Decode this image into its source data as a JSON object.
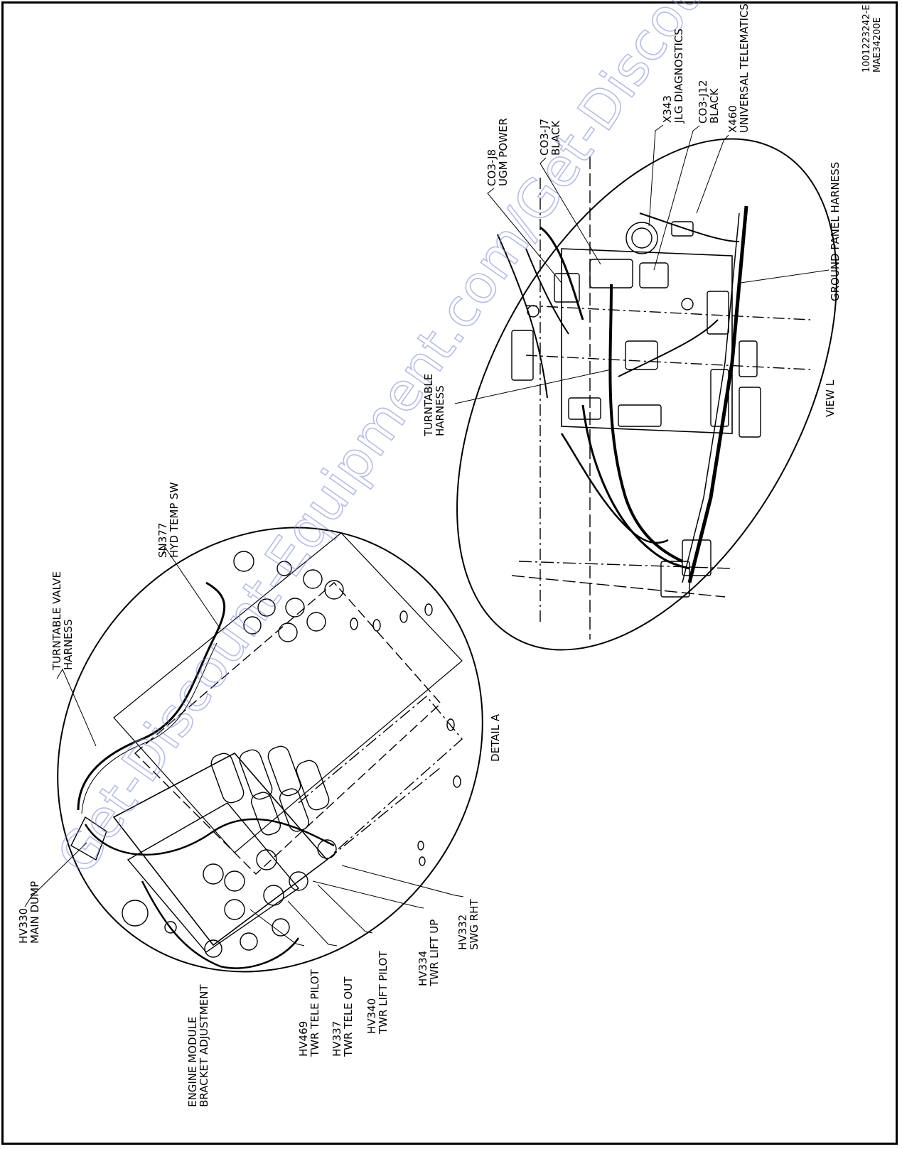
{
  "drawing": {
    "id_line1": "1001223242-E",
    "id_line2": "MAE34200E",
    "watermark": "Get-Discount-Equipment.com/Get-Discount-Parts"
  },
  "detail_a": {
    "title": "DETAIL A",
    "labels": {
      "hv330_code": "HV330",
      "hv330_desc": "MAIN DUMP",
      "harness_1": "TURNTABLE VALVE",
      "harness_2": "HARNESS",
      "sn377_code": "SN377",
      "sn377_desc": "HYD TEMP SW",
      "engine_1": "ENGINE MODULE",
      "engine_2": "BRACKET ADJUSTMENT",
      "hv469_code": "HV469",
      "hv469_desc": "TWR TELE PILOT",
      "hv337_code": "HV337",
      "hv337_desc": "TWR TELE OUT",
      "hv340_code": "HV340",
      "hv340_desc": "TWR LIFT PILOT",
      "hv334_code": "HV334",
      "hv334_desc": "TWR LIFT UP",
      "hv332_code": "HV332",
      "hv332_desc": "SWG RHT"
    }
  },
  "view_l": {
    "title": "VIEW L",
    "labels": {
      "turntable_1": "TURNTABLE",
      "turntable_2": "HARNESS",
      "co3j8_code": "CO3-J8",
      "co3j8_desc": "UGM POWER",
      "co3j7_code": "CO3-J7",
      "co3j7_desc": "BLACK",
      "x343_code": "X343",
      "x343_desc": "JLG DIAGNOSTICS",
      "co3j12_code": "CO3-J12",
      "co3j12_desc": "BLACK",
      "x460_code": "X460",
      "x460_desc": "UNIVERSAL TELEMATICS",
      "ground_panel": "GROUND PANEL HARNESS"
    }
  }
}
